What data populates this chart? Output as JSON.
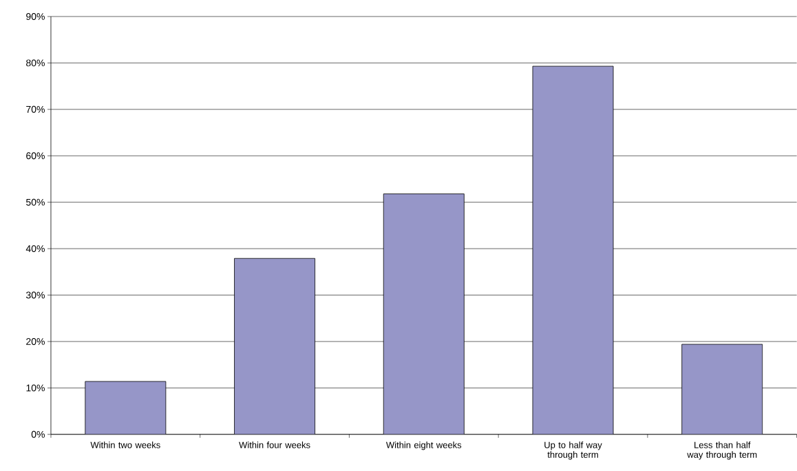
{
  "chart_data": {
    "type": "bar",
    "categories": [
      "Within two weeks",
      "Within four weeks",
      "Within eight weeks",
      "Up to half way through term",
      "Less than half way through term"
    ],
    "values": [
      11.4,
      37.9,
      51.8,
      79.3,
      19.4
    ],
    "color": "#9696c8",
    "ylim": [
      0,
      90
    ],
    "yticks": [
      {
        "value": 0,
        "label": "0%"
      },
      {
        "value": 10,
        "label": "10%"
      },
      {
        "value": 20,
        "label": "20%"
      },
      {
        "value": 30,
        "label": "30%"
      },
      {
        "value": 40,
        "label": "40%"
      },
      {
        "value": 50,
        "label": "50%"
      },
      {
        "value": 60,
        "label": "60%"
      },
      {
        "value": 70,
        "label": "70%"
      },
      {
        "value": 80,
        "label": "80%"
      },
      {
        "value": 90,
        "label": "90%"
      }
    ],
    "grid": "y"
  }
}
